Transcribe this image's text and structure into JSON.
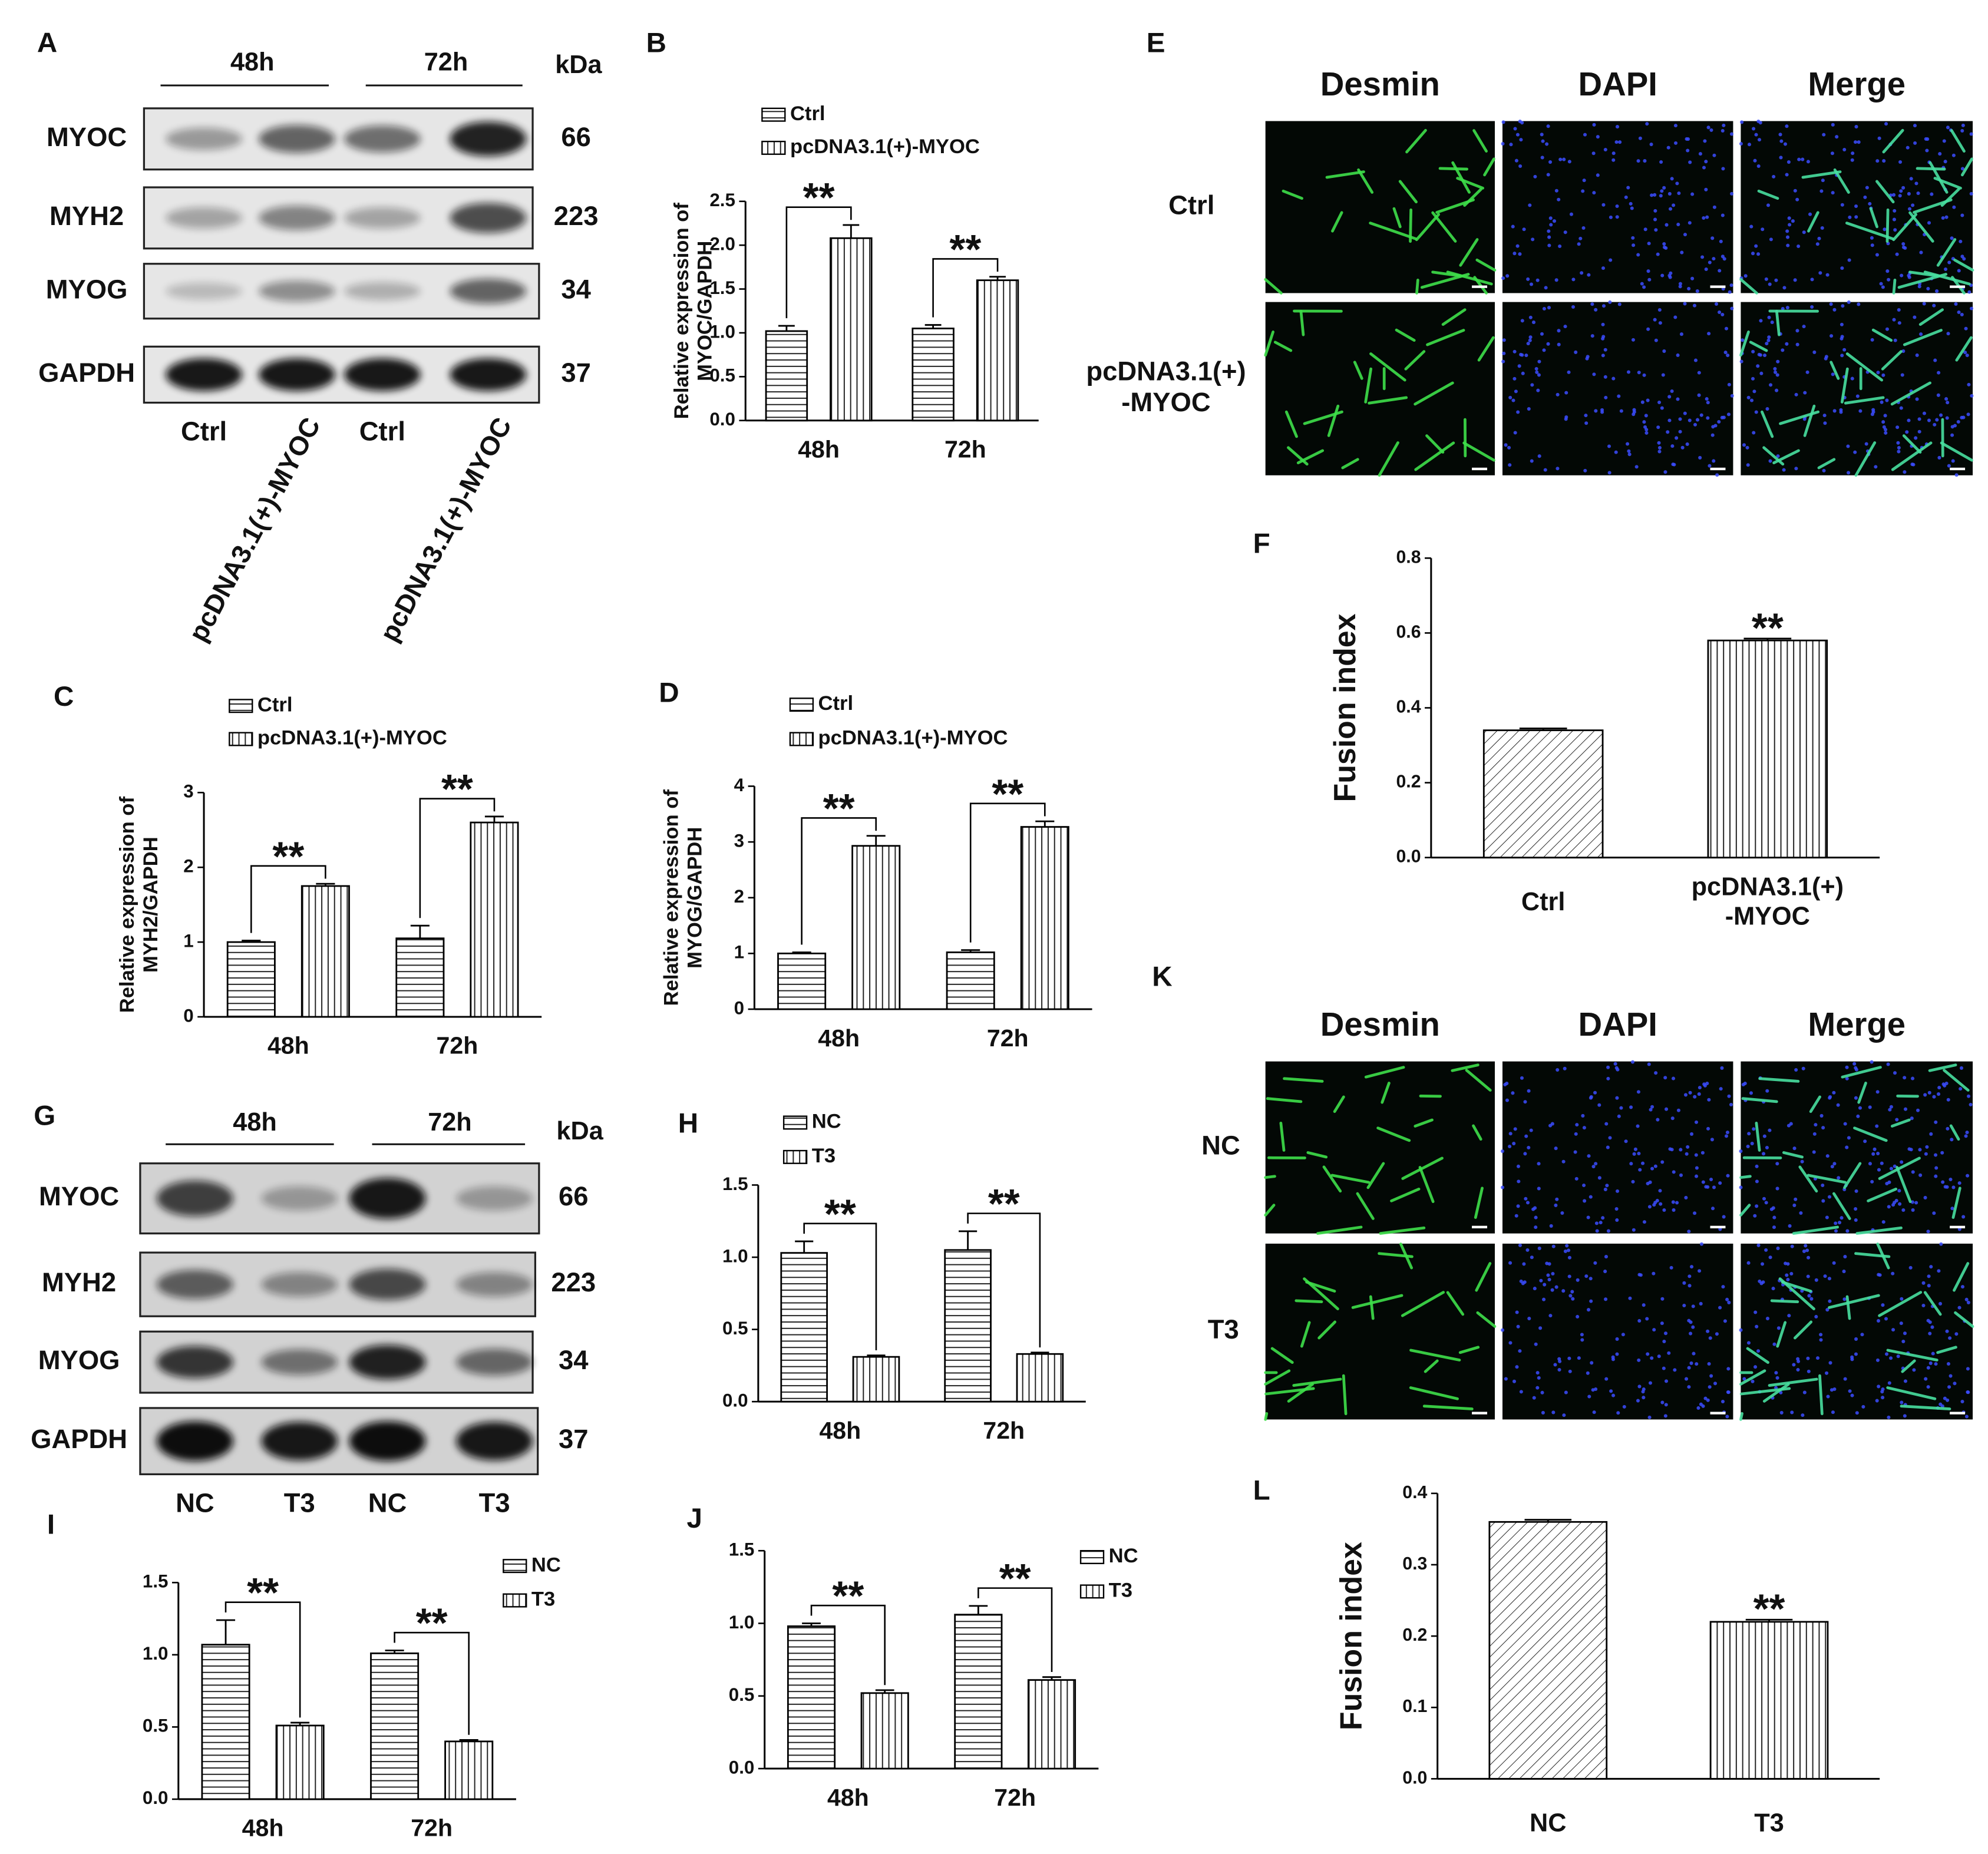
{
  "chart_data": [
    {
      "type": "bar",
      "panel": "B",
      "ylabel": "Relative expression of\nMYOC/GAPDH",
      "categories": [
        "48h",
        "72h"
      ],
      "color": "#000000",
      "legend": "above-left",
      "series": [
        {
          "name": "Ctrl",
          "pattern": "horizontal",
          "values": [
            1.02,
            1.05
          ],
          "errors": [
            0.06,
            0.04
          ]
        },
        {
          "name": "pcDNA3.1(+)-MYOC",
          "pattern": "vertical",
          "values": [
            2.08,
            1.6
          ],
          "errors": [
            0.15,
            0.04
          ]
        }
      ],
      "significance": [
        "**",
        "**"
      ],
      "ylim": [
        0,
        2.5
      ],
      "yticks": [
        {
          "value": 0,
          "label": "0.0"
        },
        0.5,
        {
          "value": 1,
          "label": "1.0"
        },
        1.5,
        {
          "value": 2,
          "label": "2.0"
        },
        2.5
      ]
    },
    {
      "type": "bar",
      "panel": "C",
      "ylabel": "Relative expression of\nMYH2/GAPDH",
      "categories": [
        "48h",
        "72h"
      ],
      "color": "#000000",
      "legend": "above-left",
      "series": [
        {
          "name": "Ctrl",
          "pattern": "horizontal",
          "values": [
            1.0,
            1.05
          ],
          "errors": [
            0.02,
            0.17
          ]
        },
        {
          "name": "pcDNA3.1(+)-MYOC",
          "pattern": "vertical",
          "values": [
            1.75,
            2.6
          ],
          "errors": [
            0.03,
            0.08
          ]
        }
      ],
      "significance": [
        "**",
        "**"
      ],
      "ylim": [
        0,
        3
      ],
      "yticks": [
        0,
        1,
        2,
        3
      ]
    },
    {
      "type": "bar",
      "panel": "D",
      "ylabel": "Relative expression of\nMYOG/GAPDH",
      "categories": [
        "48h",
        "72h"
      ],
      "color": "#000000",
      "legend": "above-left",
      "series": [
        {
          "name": "Ctrl",
          "pattern": "horizontal",
          "values": [
            1.0,
            1.02
          ],
          "errors": [
            0.02,
            0.04
          ]
        },
        {
          "name": "pcDNA3.1(+)-MYOC",
          "pattern": "vertical",
          "values": [
            2.93,
            3.27
          ],
          "errors": [
            0.18,
            0.1
          ]
        }
      ],
      "significance": [
        "**",
        "**"
      ],
      "ylim": [
        0,
        4
      ],
      "yticks": [
        0,
        1,
        2,
        3,
        4
      ]
    },
    {
      "type": "bar",
      "panel": "F",
      "ylabel": "Fusion index",
      "categories": [
        "Ctrl",
        "pcDNA3.1(+)\n-MYOC"
      ],
      "color": "#000000",
      "patterns": [
        "diagonal",
        "vertical"
      ],
      "values": [
        0.34,
        0.58
      ],
      "errors": [
        0.005,
        0.005
      ],
      "significance": [
        null,
        "**"
      ],
      "ylim": [
        0,
        0.8
      ],
      "yticks": [
        {
          "value": 0,
          "label": "0.0"
        },
        0.2,
        0.4,
        0.6,
        0.8
      ]
    },
    {
      "type": "bar",
      "panel": "H",
      "categories": [
        "48h",
        "72h"
      ],
      "color": "#000000",
      "legend": "above-left",
      "series": [
        {
          "name": "NC",
          "pattern": "horizontal",
          "values": [
            1.03,
            1.05
          ],
          "errors": [
            0.08,
            0.13
          ]
        },
        {
          "name": "T3",
          "pattern": "vertical",
          "values": [
            0.31,
            0.33
          ],
          "errors": [
            0.01,
            0.01
          ]
        }
      ],
      "significance": [
        "**",
        "**"
      ],
      "ylim": [
        0,
        1.5
      ],
      "yticks": [
        {
          "value": 0,
          "label": "0.0"
        },
        0.5,
        {
          "value": 1,
          "label": "1.0"
        },
        1.5
      ]
    },
    {
      "type": "bar",
      "panel": "I",
      "categories": [
        "48h",
        "72h"
      ],
      "color": "#000000",
      "legend": "upper-right",
      "series": [
        {
          "name": "NC",
          "pattern": "horizontal",
          "values": [
            1.07,
            1.01
          ],
          "errors": [
            0.17,
            0.02
          ]
        },
        {
          "name": "T3",
          "pattern": "vertical",
          "values": [
            0.51,
            0.4
          ],
          "errors": [
            0.02,
            0.01
          ]
        }
      ],
      "significance": [
        "**",
        "**"
      ],
      "ylim": [
        0,
        1.5
      ],
      "yticks": [
        {
          "value": 0,
          "label": "0.0"
        },
        0.5,
        {
          "value": 1,
          "label": "1.0"
        },
        1.5
      ]
    },
    {
      "type": "bar",
      "panel": "J",
      "categories": [
        "48h",
        "72h"
      ],
      "color": "#000000",
      "legend": "upper-right",
      "series": [
        {
          "name": "NC",
          "pattern": "horizontal",
          "values": [
            0.98,
            1.06
          ],
          "errors": [
            0.02,
            0.06
          ]
        },
        {
          "name": "T3",
          "pattern": "vertical",
          "values": [
            0.52,
            0.61
          ],
          "errors": [
            0.02,
            0.02
          ]
        }
      ],
      "significance": [
        "**",
        "**"
      ],
      "ylim": [
        0,
        1.5
      ],
      "yticks": [
        {
          "value": 0,
          "label": "0.0"
        },
        0.5,
        {
          "value": 1,
          "label": "1.0"
        },
        1.5
      ]
    },
    {
      "type": "bar",
      "panel": "L",
      "ylabel": "Fusion index",
      "categories": [
        "NC",
        "T3"
      ],
      "color": "#000000",
      "patterns": [
        "diagonal",
        "vertical"
      ],
      "values": [
        0.36,
        0.22
      ],
      "errors": [
        0.003,
        0.003
      ],
      "significance": [
        null,
        "**"
      ],
      "ylim": [
        0,
        0.4
      ],
      "yticks": [
        {
          "value": 0,
          "label": "0.0"
        },
        0.1,
        0.2,
        0.3,
        0.4
      ]
    }
  ],
  "blots": [
    {
      "panel": "A",
      "times": [
        "48h",
        "72h"
      ],
      "unit": "kDa",
      "rows": [
        {
          "protein": "MYOC",
          "kda": "66"
        },
        {
          "protein": "MYH2",
          "kda": "223"
        },
        {
          "protein": "MYOG",
          "kda": "34"
        },
        {
          "protein": "GAPDH",
          "kda": "37"
        }
      ],
      "lanes": [
        "Ctrl",
        "pcDNA3.1(+)-MYOC",
        "Ctrl",
        "pcDNA3.1(+)-MYOC"
      ]
    },
    {
      "panel": "G",
      "times": [
        "48h",
        "72h"
      ],
      "unit": "kDa",
      "rows": [
        {
          "protein": "MYOC",
          "kda": "66"
        },
        {
          "protein": "MYH2",
          "kda": "223"
        },
        {
          "protein": "MYOG",
          "kda": "34"
        },
        {
          "protein": "GAPDH",
          "kda": "37"
        }
      ],
      "lanes": [
        "NC",
        "T3",
        "NC",
        "T3"
      ]
    }
  ],
  "micrographs": [
    {
      "panel": "E",
      "channels": [
        "Desmin",
        "DAPI",
        "Merge"
      ],
      "rows": [
        "Ctrl",
        "pcDNA3.1(+)\n-MYOC"
      ]
    },
    {
      "panel": "K",
      "channels": [
        "Desmin",
        "DAPI",
        "Merge"
      ],
      "rows": [
        "NC",
        "T3"
      ]
    }
  ]
}
